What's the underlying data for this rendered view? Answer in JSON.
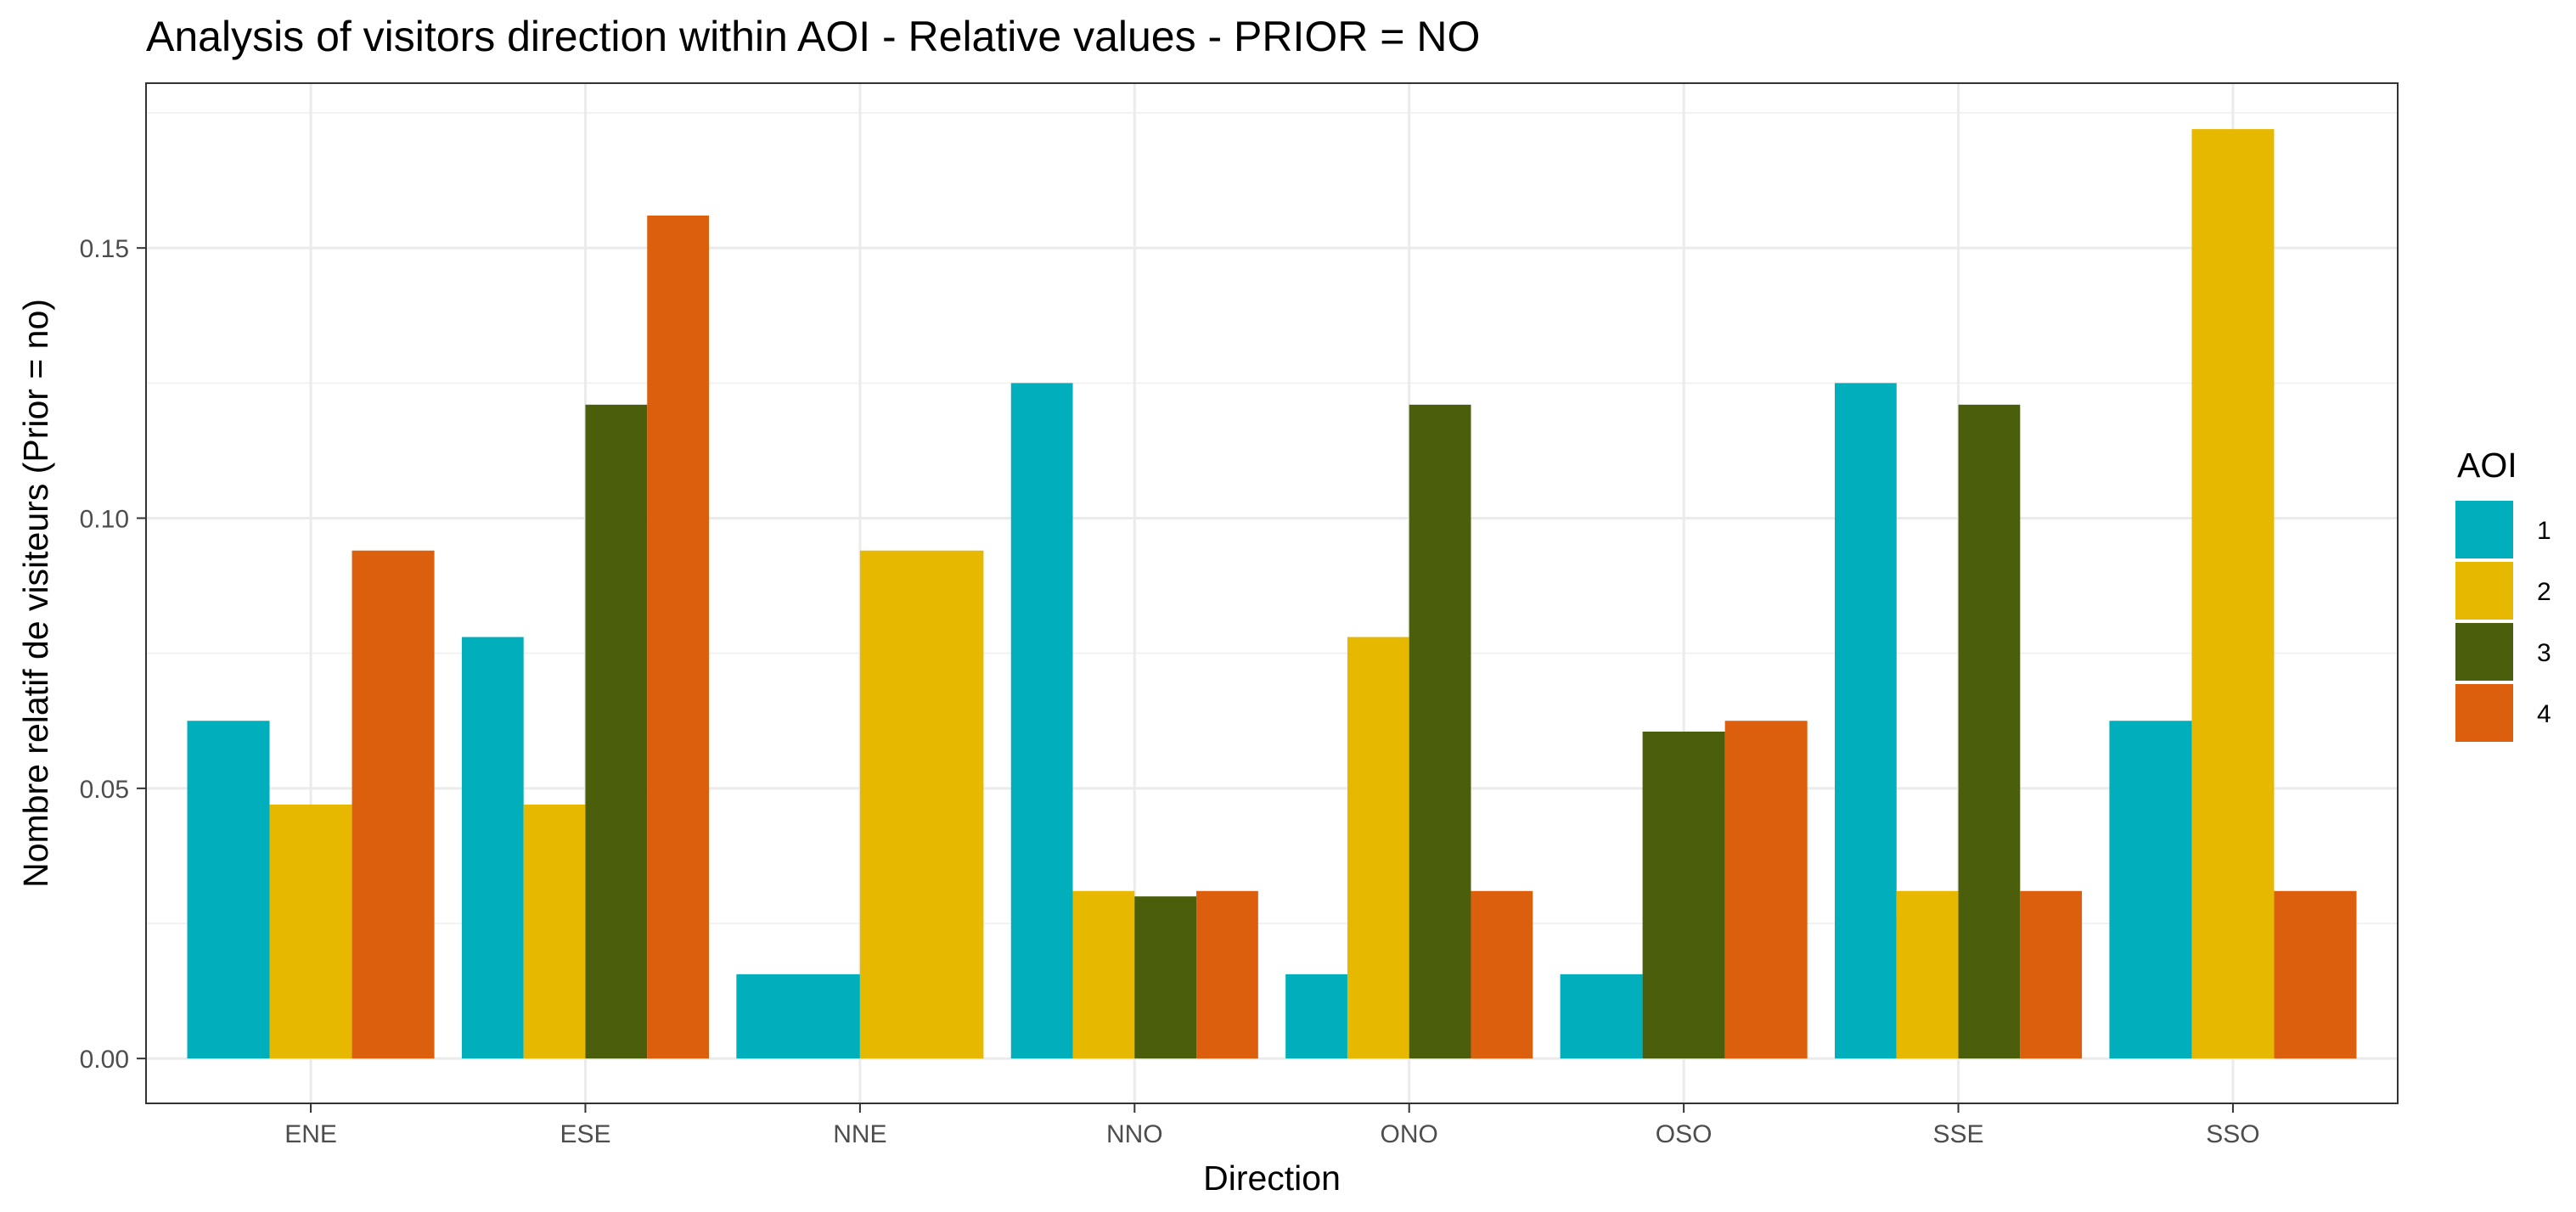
{
  "chart_data": {
    "type": "bar",
    "title": "Analysis of visitors direction within AOI - Relative values - PRIOR = NO",
    "xlabel": "Direction",
    "ylabel": "Nombre relatif de visiteurs (Prior = no)",
    "categories": [
      "ENE",
      "ESE",
      "NNE",
      "NNO",
      "ONO",
      "OSO",
      "SSE",
      "SSO"
    ],
    "ylim": [
      -0.0083,
      0.1805
    ],
    "yticks": [
      0.0,
      0.05,
      0.1,
      0.15
    ],
    "ytick_labels": [
      "0.00",
      "0.05",
      "0.10",
      "0.15"
    ],
    "grid": true,
    "legend": {
      "title": "AOI",
      "position": "right"
    },
    "series": [
      {
        "name": "1",
        "color": "#00AFBB",
        "values": [
          0.0625,
          0.078,
          0.0156,
          0.125,
          0.0156,
          0.0156,
          0.125,
          0.0625
        ]
      },
      {
        "name": "2",
        "color": "#E7B800",
        "values": [
          0.047,
          0.047,
          0.094,
          0.031,
          0.078,
          null,
          0.031,
          0.172
        ]
      },
      {
        "name": "3",
        "color": "#4A5E0C",
        "values": [
          null,
          0.121,
          null,
          0.03,
          0.121,
          0.0605,
          0.121,
          null
        ]
      },
      {
        "name": "4",
        "color": "#DB5F0C",
        "values": [
          0.094,
          0.156,
          null,
          0.031,
          0.031,
          0.0625,
          0.031,
          0.031
        ]
      }
    ]
  }
}
